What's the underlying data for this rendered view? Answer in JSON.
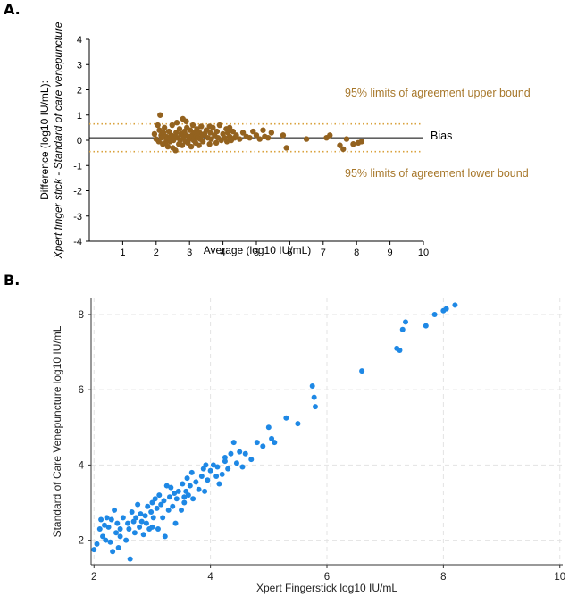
{
  "panel_a": {
    "label": "A.",
    "bias_label": "Bias",
    "upper_loa_label": "95% limits of agreement upper bound",
    "lower_loa_label": "95% limits of agreement lower bound",
    "colors": {
      "points": "#93621f",
      "loa": "#d9a23c",
      "bias": "#000000"
    }
  },
  "panel_b": {
    "label": "B.",
    "colors": {
      "points": "#1e88e5",
      "grid": "#e3e3e3"
    }
  },
  "chart_data": [
    {
      "type": "scatter",
      "title": "",
      "xlabel": "Average (log10 IU/mL)",
      "ylabel_line1": "Difference (log10 IU/mL):",
      "ylabel_line2": "Xpert finger stick - Standard of care venepuncture",
      "xlim": [
        0,
        10
      ],
      "ylim": [
        -4,
        4
      ],
      "xticks": [
        1,
        2,
        3,
        4,
        5,
        6,
        7,
        8,
        9,
        10
      ],
      "yticks": [
        -4,
        -3,
        -2,
        -1,
        0,
        1,
        2,
        3,
        4
      ],
      "bias": 0.1,
      "upper_loa": 0.65,
      "lower_loa": -0.45,
      "points": [
        [
          1.95,
          0.25
        ],
        [
          2.0,
          0.05
        ],
        [
          2.05,
          0.6
        ],
        [
          2.08,
          -0.05
        ],
        [
          2.1,
          0.4
        ],
        [
          2.12,
          1.0
        ],
        [
          2.15,
          0.2
        ],
        [
          2.18,
          0.1
        ],
        [
          2.2,
          -0.15
        ],
        [
          2.22,
          0.3
        ],
        [
          2.25,
          0.5
        ],
        [
          2.28,
          -0.1
        ],
        [
          2.3,
          0.15
        ],
        [
          2.32,
          0.05
        ],
        [
          2.35,
          -0.25
        ],
        [
          2.38,
          0.35
        ],
        [
          2.4,
          0.1
        ],
        [
          2.42,
          -0.05
        ],
        [
          2.45,
          0.2
        ],
        [
          2.48,
          0.6
        ],
        [
          2.5,
          -0.3
        ],
        [
          2.52,
          0.0
        ],
        [
          2.55,
          0.15
        ],
        [
          2.58,
          -0.4
        ],
        [
          2.6,
          0.3
        ],
        [
          2.62,
          0.7
        ],
        [
          2.65,
          0.1
        ],
        [
          2.68,
          -0.15
        ],
        [
          2.7,
          0.45
        ],
        [
          2.72,
          0.0
        ],
        [
          2.75,
          0.25
        ],
        [
          2.78,
          -0.2
        ],
        [
          2.8,
          0.85
        ],
        [
          2.82,
          0.1
        ],
        [
          2.85,
          0.35
        ],
        [
          2.88,
          -0.05
        ],
        [
          2.9,
          0.2
        ],
        [
          2.92,
          0.5
        ],
        [
          2.95,
          -0.1
        ],
        [
          2.98,
          0.15
        ],
        [
          3.0,
          0.05
        ],
        [
          3.02,
          0.4
        ],
        [
          3.05,
          -0.25
        ],
        [
          3.08,
          0.2
        ],
        [
          3.1,
          0.6
        ],
        [
          3.12,
          0.0
        ],
        [
          3.15,
          0.3
        ],
        [
          3.18,
          -0.1
        ],
        [
          3.2,
          0.15
        ],
        [
          3.22,
          0.45
        ],
        [
          3.25,
          0.1
        ],
        [
          3.28,
          -0.2
        ],
        [
          3.3,
          0.3
        ],
        [
          3.32,
          0.05
        ],
        [
          3.35,
          0.55
        ],
        [
          3.38,
          0.2
        ],
        [
          3.4,
          -0.05
        ],
        [
          3.45,
          0.25
        ],
        [
          3.5,
          0.4
        ],
        [
          3.55,
          0.1
        ],
        [
          3.6,
          -0.15
        ],
        [
          3.62,
          0.3
        ],
        [
          3.65,
          0.05
        ],
        [
          3.7,
          0.5
        ],
        [
          3.75,
          0.2
        ],
        [
          3.8,
          -0.1
        ],
        [
          3.82,
          0.35
        ],
        [
          3.85,
          0.1
        ],
        [
          3.9,
          0.6
        ],
        [
          3.95,
          0.0
        ],
        [
          4.0,
          0.25
        ],
        [
          4.05,
          0.1
        ],
        [
          4.1,
          0.45
        ],
        [
          4.12,
          -0.05
        ],
        [
          4.15,
          0.3
        ],
        [
          4.2,
          0.15
        ],
        [
          4.25,
          0.0
        ],
        [
          4.3,
          0.35
        ],
        [
          4.35,
          0.1
        ],
        [
          4.4,
          0.2
        ],
        [
          4.5,
          0.05
        ],
        [
          4.6,
          0.3
        ],
        [
          4.7,
          0.15
        ],
        [
          4.8,
          0.1
        ],
        [
          4.9,
          0.35
        ],
        [
          5.0,
          0.2
        ],
        [
          5.1,
          0.05
        ],
        [
          5.25,
          0.15
        ],
        [
          5.35,
          0.1
        ],
        [
          5.45,
          0.3
        ],
        [
          5.8,
          0.2
        ],
        [
          5.9,
          -0.3
        ],
        [
          6.5,
          0.05
        ],
        [
          7.1,
          0.1
        ],
        [
          7.2,
          0.2
        ],
        [
          7.5,
          -0.2
        ],
        [
          7.6,
          -0.35
        ],
        [
          7.7,
          0.05
        ],
        [
          7.9,
          -0.15
        ],
        [
          8.05,
          -0.1
        ],
        [
          8.15,
          -0.05
        ],
        [
          2.9,
          0.75
        ],
        [
          3.6,
          0.55
        ],
        [
          4.2,
          0.5
        ],
        [
          5.2,
          0.4
        ]
      ]
    },
    {
      "type": "scatter",
      "title": "",
      "xlabel": "Xpert Fingerstick log10 IU/mL",
      "ylabel": "Standard of Care Venepuncture log10 IU/mL",
      "xlim": [
        1.95,
        10.05
      ],
      "ylim": [
        1.35,
        8.45
      ],
      "xticks": [
        2,
        4,
        6,
        8,
        10
      ],
      "yticks": [
        2,
        4,
        6,
        8
      ],
      "grid": true,
      "points": [
        [
          2.0,
          1.75
        ],
        [
          2.05,
          1.9
        ],
        [
          2.1,
          2.3
        ],
        [
          2.12,
          2.55
        ],
        [
          2.15,
          2.1
        ],
        [
          2.18,
          2.4
        ],
        [
          2.2,
          2.0
        ],
        [
          2.22,
          2.6
        ],
        [
          2.25,
          2.35
        ],
        [
          2.28,
          1.95
        ],
        [
          2.3,
          2.55
        ],
        [
          2.32,
          1.7
        ],
        [
          2.35,
          2.8
        ],
        [
          2.38,
          2.2
        ],
        [
          2.4,
          2.45
        ],
        [
          2.42,
          1.8
        ],
        [
          2.45,
          2.3
        ],
        [
          2.5,
          2.6
        ],
        [
          2.55,
          2.0
        ],
        [
          2.58,
          2.45
        ],
        [
          2.6,
          2.3
        ],
        [
          2.62,
          1.5
        ],
        [
          2.65,
          2.75
        ],
        [
          2.68,
          2.5
        ],
        [
          2.7,
          2.2
        ],
        [
          2.72,
          2.6
        ],
        [
          2.75,
          2.95
        ],
        [
          2.78,
          2.35
        ],
        [
          2.8,
          2.7
        ],
        [
          2.82,
          2.5
        ],
        [
          2.85,
          2.15
        ],
        [
          2.88,
          2.65
        ],
        [
          2.9,
          2.45
        ],
        [
          2.92,
          2.9
        ],
        [
          2.95,
          2.3
        ],
        [
          2.98,
          2.75
        ],
        [
          3.0,
          3.0
        ],
        [
          3.02,
          2.6
        ],
        [
          3.05,
          3.1
        ],
        [
          3.08,
          2.85
        ],
        [
          3.1,
          2.3
        ],
        [
          3.12,
          3.2
        ],
        [
          3.15,
          2.95
        ],
        [
          3.18,
          2.6
        ],
        [
          3.2,
          3.05
        ],
        [
          3.22,
          2.1
        ],
        [
          3.25,
          3.45
        ],
        [
          3.28,
          2.8
        ],
        [
          3.3,
          3.15
        ],
        [
          3.32,
          3.4
        ],
        [
          3.35,
          2.9
        ],
        [
          3.38,
          3.25
        ],
        [
          3.4,
          2.45
        ],
        [
          3.42,
          3.1
        ],
        [
          3.45,
          3.3
        ],
        [
          3.5,
          2.8
        ],
        [
          3.52,
          3.5
        ],
        [
          3.55,
          3.0
        ],
        [
          3.58,
          3.3
        ],
        [
          3.6,
          3.65
        ],
        [
          3.62,
          3.2
        ],
        [
          3.65,
          3.45
        ],
        [
          3.68,
          3.8
        ],
        [
          3.7,
          3.1
        ],
        [
          3.75,
          3.55
        ],
        [
          3.8,
          3.35
        ],
        [
          3.85,
          3.7
        ],
        [
          3.88,
          3.9
        ],
        [
          3.9,
          3.3
        ],
        [
          3.92,
          4.0
        ],
        [
          3.95,
          3.6
        ],
        [
          4.0,
          3.85
        ],
        [
          4.05,
          4.0
        ],
        [
          4.1,
          3.7
        ],
        [
          4.12,
          3.95
        ],
        [
          4.15,
          3.5
        ],
        [
          4.2,
          3.75
        ],
        [
          4.25,
          4.2
        ],
        [
          4.3,
          3.9
        ],
        [
          4.35,
          4.3
        ],
        [
          4.4,
          4.6
        ],
        [
          4.45,
          4.05
        ],
        [
          4.5,
          4.35
        ],
        [
          4.55,
          3.95
        ],
        [
          4.6,
          4.3
        ],
        [
          4.7,
          4.15
        ],
        [
          4.8,
          4.6
        ],
        [
          4.9,
          4.5
        ],
        [
          5.0,
          5.0
        ],
        [
          5.05,
          4.7
        ],
        [
          5.1,
          4.6
        ],
        [
          5.3,
          5.25
        ],
        [
          5.5,
          5.1
        ],
        [
          5.75,
          6.1
        ],
        [
          5.78,
          5.8
        ],
        [
          5.8,
          5.55
        ],
        [
          6.6,
          6.5
        ],
        [
          7.2,
          7.1
        ],
        [
          7.25,
          7.05
        ],
        [
          7.3,
          7.6
        ],
        [
          7.35,
          7.8
        ],
        [
          7.7,
          7.7
        ],
        [
          7.85,
          8.0
        ],
        [
          8.0,
          8.1
        ],
        [
          8.05,
          8.15
        ],
        [
          8.2,
          8.25
        ],
        [
          3.0,
          2.35
        ],
        [
          2.45,
          2.1
        ],
        [
          3.55,
          3.15
        ],
        [
          4.25,
          4.1
        ]
      ]
    }
  ]
}
